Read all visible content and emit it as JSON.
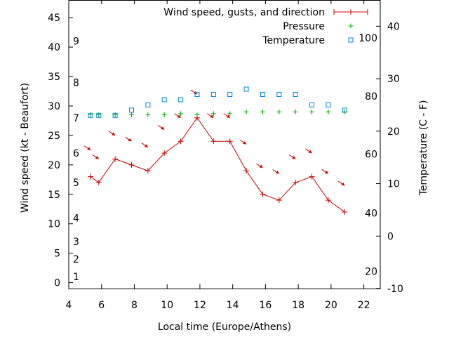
{
  "chart_data": {
    "type": "line",
    "xlabel": "Local time (Europe/Athens)",
    "ylabel_left": "Wind speed (kt - Beaufort)",
    "ylabel_right": "Temperature (C - F)",
    "xlim": [
      4,
      23
    ],
    "ylim_left": [
      -1,
      48
    ],
    "ylim_right": [
      -10,
      45
    ],
    "x_ticks": [
      4,
      6,
      8,
      10,
      12,
      14,
      16,
      18,
      20,
      22
    ],
    "left_ticks": [
      0,
      5,
      10,
      15,
      20,
      25,
      30,
      35,
      40,
      45
    ],
    "right_ticks": [
      -10,
      0,
      10,
      20,
      30,
      40
    ],
    "beaufort_labels": [
      {
        "label": "1",
        "kt": 1
      },
      {
        "label": "2",
        "kt": 4
      },
      {
        "label": "3",
        "kt": 7
      },
      {
        "label": "4",
        "kt": 11
      },
      {
        "label": "5",
        "kt": 17
      },
      {
        "label": "6",
        "kt": 22
      },
      {
        "label": "7",
        "kt": 28
      },
      {
        "label": "8",
        "kt": 34
      },
      {
        "label": "9",
        "kt": 41
      }
    ],
    "fahrenheit_labels": [
      {
        "label": "20",
        "celsius": -6.7
      },
      {
        "label": "40",
        "celsius": 4.4
      },
      {
        "label": "60",
        "celsius": 15.6
      },
      {
        "label": "80",
        "celsius": 26.7
      },
      {
        "label": "100",
        "celsius": 37.8
      }
    ],
    "legend": {
      "position": "top-right",
      "entries": [
        "Wind speed, gusts, and direction",
        "Pressure",
        "Temperature"
      ]
    },
    "series": [
      {
        "name": "Wind speed, gusts, and direction",
        "color": "#cc0000",
        "x": [
          5.33,
          5.83,
          6.83,
          7.83,
          8.83,
          9.83,
          10.83,
          11.83,
          12.83,
          13.83,
          14.83,
          15.83,
          16.83,
          17.83,
          18.83,
          19.83,
          20.83
        ],
        "y": [
          18,
          17,
          21,
          20,
          19,
          22,
          24,
          28,
          24,
          24,
          19,
          15,
          14,
          17,
          18,
          14,
          12
        ]
      },
      {
        "name": "Wind direction",
        "color": "#cc0000",
        "x": [
          5.33,
          5.83,
          6.83,
          7.83,
          8.83,
          9.83,
          10.83,
          11.83,
          12.83,
          13.83,
          14.83,
          15.83,
          16.83,
          17.83,
          18.83,
          19.83,
          20.83
        ],
        "y": [
          22.5,
          21,
          25,
          24,
          23,
          26,
          28,
          32,
          28,
          28,
          23.5,
          19.5,
          18.5,
          21,
          22,
          18.5,
          16.5
        ]
      },
      {
        "name": "Pressure",
        "color": "#00aa00",
        "x": [
          5.33,
          5.83,
          6.83,
          7.83,
          8.83,
          9.83,
          10.83,
          11.83,
          12.83,
          13.83,
          14.83,
          15.83,
          16.83,
          17.83,
          18.83,
          19.83,
          20.83
        ],
        "y": [
          28.5,
          28.5,
          28.5,
          28.5,
          28.5,
          28.5,
          28.7,
          28.5,
          28.7,
          28.7,
          29,
          29,
          29,
          29,
          29,
          29,
          29
        ]
      },
      {
        "name": "Temperature",
        "color": "#0088dd",
        "x": [
          5.33,
          5.83,
          6.83,
          7.83,
          8.83,
          9.83,
          10.83,
          11.83,
          12.83,
          13.83,
          14.83,
          15.83,
          16.83,
          17.83,
          18.83,
          19.83,
          20.83
        ],
        "y": [
          23,
          23,
          23,
          24,
          25,
          26,
          26,
          27,
          27,
          27,
          28,
          27,
          27,
          27,
          25,
          25,
          24
        ]
      }
    ]
  }
}
